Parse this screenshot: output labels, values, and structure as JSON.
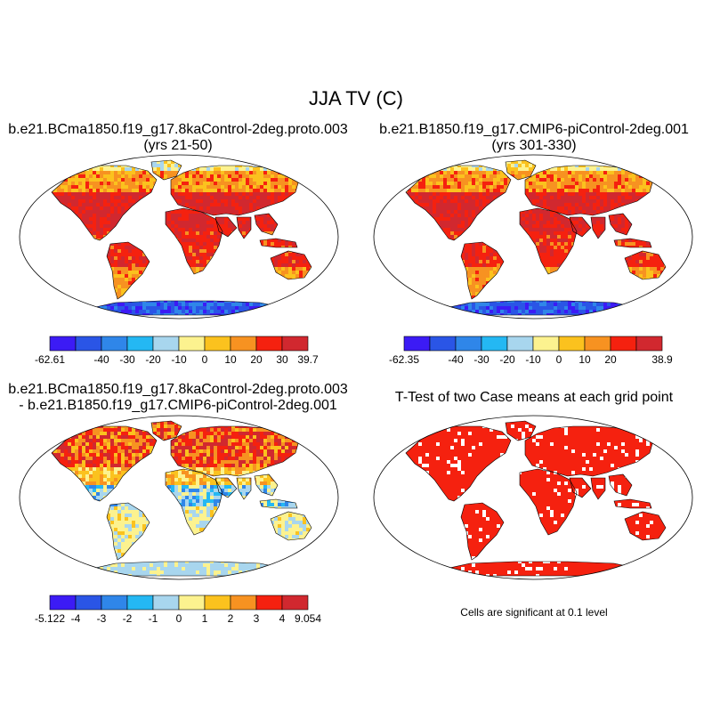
{
  "title": "JJA TV (C)",
  "panels": [
    {
      "id": "case1",
      "title_line1": "b.e21.BCma1850.f19_g17.8kaControl-2deg.proto.003",
      "title_line2": "(yrs 21-50)",
      "colorbar": {
        "colors": [
          "#3c1bf5",
          "#2a55e6",
          "#2f86e9",
          "#24b8f3",
          "#a8d6ee",
          "#fcf28f",
          "#fbc21e",
          "#f79221",
          "#f5210f",
          "#d1282f"
        ],
        "labels": [
          "-62.61",
          "-40",
          "-30",
          "-20",
          "-10",
          "0",
          "10",
          "20",
          "30",
          "39.7"
        ]
      }
    },
    {
      "id": "case2",
      "title_line1": "b.e21.B1850.f19_g17.CMIP6-piControl-2deg.001",
      "title_line2": "(yrs 301-330)",
      "colorbar": {
        "colors": [
          "#3c1bf5",
          "#2a55e6",
          "#2f86e9",
          "#24b8f3",
          "#a8d6ee",
          "#fcf28f",
          "#fbc21e",
          "#f79221",
          "#f5210f",
          "#d1282f"
        ],
        "labels": [
          "-62.35",
          "-40",
          "-30",
          "-20",
          "-10",
          "0",
          "10",
          "20",
          "38.9"
        ]
      }
    },
    {
      "id": "diff",
      "title_line1": "b.e21.BCma1850.f19_g17.8kaControl-2deg.proto.003",
      "title_line2": "- b.e21.B1850.f19_g17.CMIP6-piControl-2deg.001",
      "colorbar": {
        "colors": [
          "#3c1bf5",
          "#2a55e6",
          "#2f86e9",
          "#24b8f3",
          "#a8d6ee",
          "#fcf28f",
          "#fbc21e",
          "#f79221",
          "#f5210f",
          "#d1282f"
        ],
        "labels": [
          "-5.122",
          "-4",
          "-3",
          "-2",
          "-1",
          "0",
          "1",
          "2",
          "3",
          "4",
          "9.054"
        ]
      }
    },
    {
      "id": "ttest",
      "title_line1": "T-Test of two Case means at each grid point",
      "note": "Cells are significant at 0.1 level"
    }
  ]
}
